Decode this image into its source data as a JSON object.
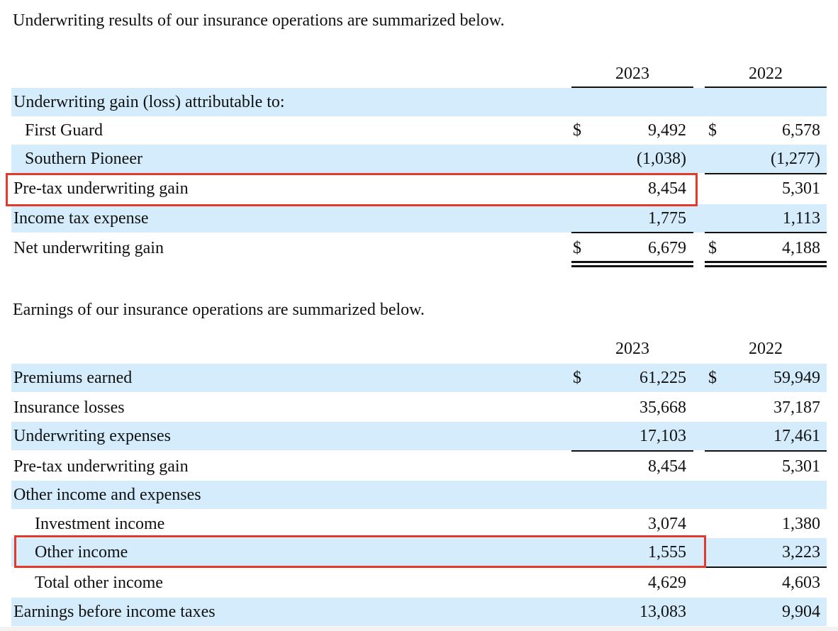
{
  "section1": {
    "intro": "Underwriting results of our insurance operations are summarized below.",
    "years": [
      "2023",
      "2022"
    ],
    "rows": [
      {
        "label": "Underwriting gain (loss) attributable to:",
        "dollar1": "",
        "v2023": "",
        "dollar2": "",
        "v2022": ""
      },
      {
        "label": "First Guard",
        "dollar1": "$",
        "v2023": "9,492",
        "dollar2": "$",
        "v2022": "6,578"
      },
      {
        "label": "Southern Pioneer",
        "dollar1": "",
        "v2023": "(1,038)",
        "dollar2": "",
        "v2022": "(1,277)"
      },
      {
        "label": "Pre-tax underwriting gain",
        "dollar1": "",
        "v2023": "8,454",
        "dollar2": "",
        "v2022": "5,301"
      },
      {
        "label": "Income tax expense",
        "dollar1": "",
        "v2023": "1,775",
        "dollar2": "",
        "v2022": "1,113"
      },
      {
        "label": "Net underwriting gain",
        "dollar1": "$",
        "v2023": "6,679",
        "dollar2": "$",
        "v2022": "4,188"
      }
    ]
  },
  "section2": {
    "intro": "Earnings of our insurance operations are summarized below.",
    "years": [
      "2023",
      "2022"
    ],
    "rows": [
      {
        "label": "Premiums earned",
        "dollar1": "$",
        "v2023": "61,225",
        "dollar2": "$",
        "v2022": "59,949"
      },
      {
        "label": "Insurance losses",
        "dollar1": "",
        "v2023": "35,668",
        "dollar2": "",
        "v2022": "37,187"
      },
      {
        "label": "Underwriting expenses",
        "dollar1": "",
        "v2023": "17,103",
        "dollar2": "",
        "v2022": "17,461"
      },
      {
        "label": "Pre-tax underwriting gain",
        "dollar1": "",
        "v2023": "8,454",
        "dollar2": "",
        "v2022": "5,301"
      },
      {
        "label": "Other income and expenses",
        "dollar1": "",
        "v2023": "",
        "dollar2": "",
        "v2022": ""
      },
      {
        "label": "Investment income",
        "dollar1": "",
        "v2023": "3,074",
        "dollar2": "",
        "v2022": "1,380"
      },
      {
        "label": "Other income",
        "dollar1": "",
        "v2023": "1,555",
        "dollar2": "",
        "v2022": "3,223"
      },
      {
        "label": "Total other income",
        "dollar1": "",
        "v2023": "4,629",
        "dollar2": "",
        "v2022": "4,603"
      },
      {
        "label": "Earnings before income taxes",
        "dollar1": "",
        "v2023": "13,083",
        "dollar2": "",
        "v2022": "9,904"
      }
    ]
  },
  "highlight_color": "#e23a2b",
  "row_shade_color": "#d4ecfb"
}
